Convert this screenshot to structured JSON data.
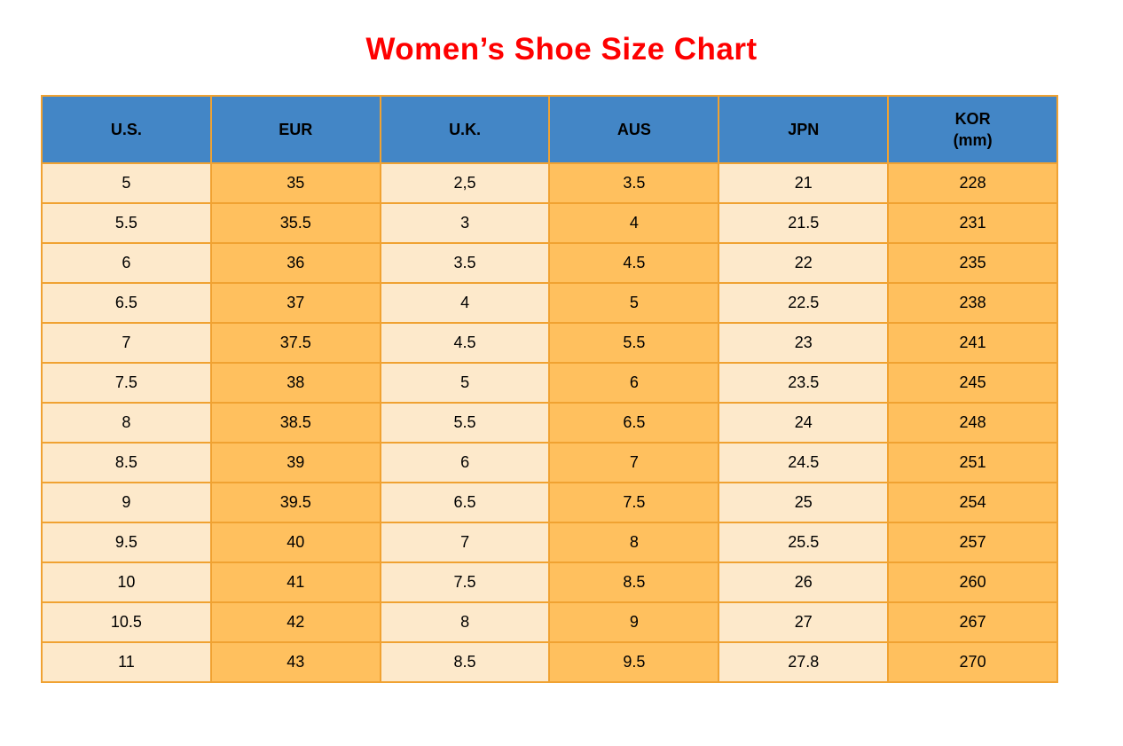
{
  "title": "Women’s Shoe Size Chart",
  "colors": {
    "title_color": "#FE0000",
    "header_bg": "#4386C6",
    "cell_cream": "#FDE9CB",
    "cell_orange": "#FFC05E",
    "border_color": "#F0A232",
    "text_color": "#000000"
  },
  "chart_data": {
    "type": "table",
    "title": "Women’s Shoe Size Chart",
    "columns": [
      "U.S.",
      "EUR",
      "U.K.",
      "AUS",
      "JPN",
      "KOR (mm)"
    ],
    "header_lines": [
      [
        "U.S."
      ],
      [
        "EUR"
      ],
      [
        "U.K."
      ],
      [
        "AUS"
      ],
      [
        "JPN"
      ],
      [
        "KOR",
        "(mm)"
      ]
    ],
    "rows": [
      [
        "5",
        "35",
        "2,5",
        "3.5",
        "21",
        "228"
      ],
      [
        "5.5",
        "35.5",
        "3",
        "4",
        "21.5",
        "231"
      ],
      [
        "6",
        "36",
        "3.5",
        "4.5",
        "22",
        "235"
      ],
      [
        "6.5",
        "37",
        "4",
        "5",
        "22.5",
        "238"
      ],
      [
        "7",
        "37.5",
        "4.5",
        "5.5",
        "23",
        "241"
      ],
      [
        "7.5",
        "38",
        "5",
        "6",
        "23.5",
        "245"
      ],
      [
        "8",
        "38.5",
        "5.5",
        "6.5",
        "24",
        "248"
      ],
      [
        "8.5",
        "39",
        "6",
        "7",
        "24.5",
        "251"
      ],
      [
        "9",
        "39.5",
        "6.5",
        "7.5",
        "25",
        "254"
      ],
      [
        "9.5",
        "40",
        "7",
        "8",
        "25.5",
        "257"
      ],
      [
        "10",
        "41",
        "7.5",
        "8.5",
        "26",
        "260"
      ],
      [
        "10.5",
        "42",
        "8",
        "9",
        "27",
        "267"
      ],
      [
        "11",
        "43",
        "8.5",
        "9.5",
        "27.8",
        "270"
      ]
    ]
  }
}
